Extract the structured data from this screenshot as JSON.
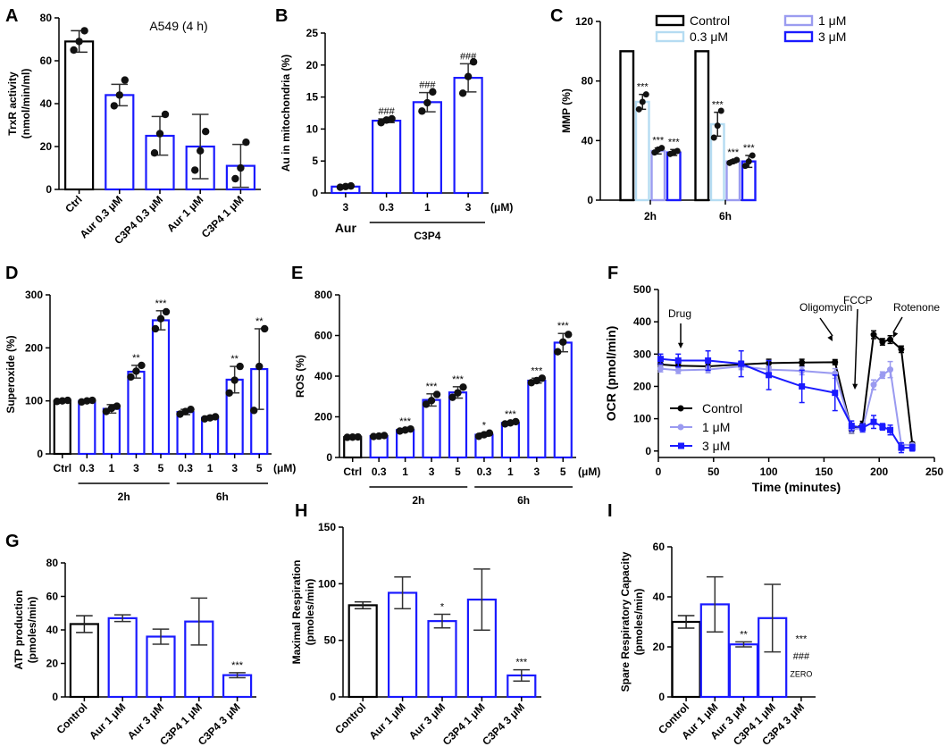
{
  "chart_data": [
    {
      "id": "A",
      "type": "bar",
      "panel_label": "A",
      "title": "A549 (4 h)",
      "ylabel": "TrxR activity\n(nmol/min/ml)",
      "ylim": [
        0,
        80
      ],
      "yticks": [
        0,
        20,
        40,
        60,
        80
      ],
      "categories": [
        "Ctrl",
        "Aur 0.3 μM",
        "C3P4 0.3 μM",
        "Aur 1 μM",
        "C3P4 1 μM"
      ],
      "values": [
        69,
        44,
        25,
        20,
        11
      ],
      "errors": [
        5,
        5,
        9,
        15,
        10
      ],
      "colors": [
        "#000000",
        "#1a1aff",
        "#1a1aff",
        "#1a1aff",
        "#1a1aff"
      ],
      "points": [
        [
          65,
          69,
          74
        ],
        [
          39,
          44,
          51
        ],
        [
          17,
          26,
          35
        ],
        [
          9,
          18,
          27
        ],
        [
          5,
          10,
          22
        ]
      ],
      "annotations": [
        "",
        "",
        "",
        "",
        ""
      ]
    },
    {
      "id": "B",
      "type": "bar",
      "panel_label": "B",
      "ylabel": "Au in mitochondria (%)",
      "ylim": [
        0,
        25
      ],
      "yticks": [
        0,
        5,
        10,
        15,
        20,
        25
      ],
      "categories": [
        "3",
        "0.3",
        "1",
        "3"
      ],
      "unit": "(μM)",
      "groups": [
        {
          "label": "Aur",
          "start": 0,
          "end": 0
        },
        {
          "label": "C3P4",
          "start": 1,
          "end": 3
        }
      ],
      "values": [
        1.0,
        11.3,
        14.2,
        18.0
      ],
      "errors": [
        0.1,
        0.3,
        1.5,
        2.2
      ],
      "colors": [
        "#1a1aff",
        "#1a1aff",
        "#1a1aff",
        "#1a1aff"
      ],
      "points": [
        [
          0.9,
          1.0,
          1.1
        ],
        [
          11.0,
          11.4,
          11.6
        ],
        [
          12.8,
          14.1,
          15.8
        ],
        [
          15.6,
          18.2,
          20.5
        ]
      ],
      "annotations": [
        "",
        "###",
        "###",
        "###"
      ]
    },
    {
      "id": "C",
      "type": "bar",
      "panel_label": "C",
      "ylabel": "MMP (%)",
      "ylim": [
        0,
        120
      ],
      "yticks": [
        0,
        40,
        80,
        120
      ],
      "categories": [
        "2h",
        "6h"
      ],
      "series": [
        {
          "name": "Control",
          "color": "#000000",
          "values": [
            100,
            100
          ],
          "errors": [
            0,
            0
          ],
          "points": [
            [],
            []
          ],
          "annotations": [
            "",
            ""
          ]
        },
        {
          "name": "0.3 μM",
          "color": "#b5dcf2",
          "values": [
            66,
            51
          ],
          "errors": [
            5,
            8
          ],
          "points": [
            [
              61,
              66,
              71
            ],
            [
              42,
              50,
              60
            ]
          ],
          "annotations": [
            "***",
            "***"
          ]
        },
        {
          "name": "1 μM",
          "color": "#9b9cf0",
          "values": [
            33,
            26
          ],
          "errors": [
            2,
            1
          ],
          "points": [
            [
              32,
              34,
              35
            ],
            [
              25,
              26,
              27
            ]
          ],
          "annotations": [
            "***",
            "***"
          ]
        },
        {
          "name": "3 μM",
          "color": "#1a1aff",
          "values": [
            32,
            26
          ],
          "errors": [
            2,
            4
          ],
          "points": [
            [
              31,
              32,
              33
            ],
            [
              23,
              26,
              30
            ]
          ],
          "annotations": [
            "***",
            "***"
          ]
        }
      ]
    },
    {
      "id": "D",
      "type": "bar",
      "panel_label": "D",
      "ylabel": "Superoxide (%)",
      "ylim": [
        0,
        300
      ],
      "yticks": [
        0,
        100,
        200,
        300
      ],
      "categories": [
        "Ctrl",
        "0.3",
        "1",
        "3",
        "5",
        "0.3",
        "1",
        "3",
        "5"
      ],
      "unit": "(μM)",
      "groups": [
        {
          "label": "2h",
          "start": 1,
          "end": 4
        },
        {
          "label": "6h",
          "start": 5,
          "end": 8
        }
      ],
      "values": [
        100,
        100,
        85,
        155,
        252,
        79,
        68,
        140,
        160
      ],
      "errors": [
        0,
        2,
        8,
        12,
        18,
        5,
        3,
        25,
        76
      ],
      "colors": [
        "#000000",
        "#1a1aff",
        "#1a1aff",
        "#1a1aff",
        "#1a1aff",
        "#1a1aff",
        "#1a1aff",
        "#1a1aff",
        "#1a1aff"
      ],
      "points": [
        [
          99,
          100,
          101
        ],
        [
          98,
          100,
          101
        ],
        [
          80,
          86,
          90
        ],
        [
          145,
          156,
          167
        ],
        [
          236,
          255,
          268
        ],
        [
          75,
          80,
          84
        ],
        [
          66,
          68,
          70
        ],
        [
          115,
          139,
          165
        ],
        [
          82,
          165,
          236
        ]
      ],
      "annotations": [
        "",
        "",
        "",
        "**",
        "***",
        "",
        "",
        "**",
        "**"
      ]
    },
    {
      "id": "E",
      "type": "bar",
      "panel_label": "E",
      "ylabel": "ROS (%)",
      "ylim": [
        0,
        800
      ],
      "yticks": [
        0,
        200,
        400,
        600,
        800
      ],
      "categories": [
        "Ctrl",
        "0.3",
        "1",
        "3",
        "5",
        "0.3",
        "1",
        "3",
        "5"
      ],
      "unit": "(μM)",
      "groups": [
        {
          "label": "2h",
          "start": 1,
          "end": 4
        },
        {
          "label": "6h",
          "start": 5,
          "end": 8
        }
      ],
      "values": [
        100,
        105,
        135,
        283,
        320,
        112,
        170,
        378,
        565
      ],
      "errors": [
        0,
        4,
        6,
        30,
        28,
        8,
        6,
        12,
        45
      ],
      "colors": [
        "#000000",
        "#1a1aff",
        "#1a1aff",
        "#1a1aff",
        "#1a1aff",
        "#1a1aff",
        "#1a1aff",
        "#1a1aff",
        "#1a1aff"
      ],
      "points": [
        [
          99,
          100,
          101
        ],
        [
          103,
          105,
          108
        ],
        [
          130,
          135,
          140
        ],
        [
          262,
          280,
          310
        ],
        [
          296,
          318,
          346
        ],
        [
          104,
          112,
          120
        ],
        [
          165,
          170,
          176
        ],
        [
          368,
          378,
          390
        ],
        [
          520,
          568,
          605
        ]
      ],
      "annotations": [
        "",
        "",
        "***",
        "***",
        "***",
        "*",
        "***",
        "***",
        "***"
      ]
    },
    {
      "id": "F",
      "type": "line",
      "panel_label": "F",
      "xlabel": "Time (minutes)",
      "ylabel": "OCR (pmol/min)",
      "xlim": [
        0,
        250
      ],
      "ylim": [
        -20,
        500
      ],
      "xticks": [
        0,
        50,
        100,
        150,
        200,
        250
      ],
      "yticks": [
        0,
        100,
        200,
        300,
        400,
        500
      ],
      "series": [
        {
          "name": "Control",
          "color": "#000000",
          "x": [
            2,
            18,
            45,
            75,
            100,
            130,
            160,
            175,
            185,
            195,
            210,
            220,
            230
          ],
          "y": [
            268,
            264,
            262,
            268,
            272,
            274,
            275,
            65,
            82,
            360,
            345,
            315,
            22
          ],
          "err": [
            10,
            12,
            10,
            10,
            12,
            10,
            8,
            10,
            10,
            12,
            12,
            10,
            5
          ],
          "extra_x": [
            203
          ],
          "extra_y": [
            338
          ]
        },
        {
          "name": "1 μM",
          "color": "#9a9af0",
          "x": [
            2,
            18,
            45,
            75,
            100,
            130,
            160,
            175,
            185,
            195,
            210,
            220,
            230
          ],
          "y": [
            255,
            250,
            252,
            262,
            252,
            248,
            240,
            68,
            70,
            205,
            252,
            20,
            18
          ],
          "err": [
            10,
            10,
            10,
            10,
            10,
            12,
            15,
            12,
            12,
            15,
            25,
            5,
            5
          ],
          "extra_x": [
            203
          ],
          "extra_y": [
            235
          ]
        },
        {
          "name": "3 μM",
          "color": "#1a1aff",
          "x": [
            2,
            18,
            45,
            75,
            100,
            130,
            160,
            175,
            185,
            195,
            210,
            220,
            230
          ],
          "y": [
            285,
            280,
            280,
            270,
            235,
            200,
            180,
            78,
            72,
            90,
            65,
            10,
            10
          ],
          "err": [
            15,
            20,
            30,
            40,
            45,
            50,
            55,
            15,
            12,
            20,
            15,
            15,
            10
          ],
          "extra_x": [
            203
          ],
          "extra_y": [
            75
          ]
        }
      ],
      "annotations": [
        {
          "text": "Drug",
          "x": 18,
          "y": 340
        },
        {
          "text": "Oligomycin",
          "x": 157,
          "y": 400
        },
        {
          "text": "FCCP",
          "x": 182,
          "y": 420
        },
        {
          "text": "Rotenone",
          "x": 205,
          "y": 400
        }
      ]
    },
    {
      "id": "G",
      "type": "bar",
      "panel_label": "G",
      "ylabel": "ATP production\n(pmoles/min)",
      "ylim": [
        0,
        80
      ],
      "yticks": [
        0,
        20,
        40,
        60,
        80
      ],
      "categories": [
        "Control",
        "Aur 1 μM",
        "Aur 3 μM",
        "C3P4 1 μM",
        "C3P4 3 μM"
      ],
      "values": [
        43.5,
        47,
        36,
        45,
        13
      ],
      "errors": [
        5,
        2,
        4.5,
        14,
        1.5
      ],
      "colors": [
        "#000000",
        "#1a1aff",
        "#1a1aff",
        "#1a1aff",
        "#1a1aff"
      ],
      "annotations": [
        "",
        "",
        "",
        "",
        "***"
      ]
    },
    {
      "id": "H",
      "type": "bar",
      "panel_label": "H",
      "ylabel": "Maximal Respiration\n(pmoles/min)",
      "ylim": [
        0,
        150
      ],
      "yticks": [
        0,
        50,
        100,
        150
      ],
      "categories": [
        "Control",
        "Aur 1 μM",
        "Aur 3 μM",
        "C3P4 1 μM",
        "C3P4 3 μM"
      ],
      "values": [
        81,
        92,
        67,
        86,
        19
      ],
      "errors": [
        3,
        14,
        6,
        27,
        5
      ],
      "colors": [
        "#000000",
        "#1a1aff",
        "#1a1aff",
        "#1a1aff",
        "#1a1aff"
      ],
      "annotations": [
        "",
        "",
        "*",
        "",
        "***"
      ]
    },
    {
      "id": "I",
      "type": "bar",
      "panel_label": "I",
      "ylabel": "Spare Respiratory Capacity\n(pmoles/min)",
      "ylim": [
        0,
        60
      ],
      "yticks": [
        0,
        20,
        40,
        60
      ],
      "categories": [
        "Control",
        "Aur 1 μM",
        "Aur 3 μM",
        "C3P4 1 μM",
        "C3P4 3 μM"
      ],
      "values": [
        30,
        37,
        21,
        31.5,
        0
      ],
      "errors": [
        2.5,
        11,
        1,
        13.5,
        0
      ],
      "colors": [
        "#000000",
        "#1a1aff",
        "#1a1aff",
        "#1a1aff",
        "#1a1aff"
      ],
      "annotations": [
        "",
        "",
        "**",
        "",
        ""
      ],
      "extra_labels": [
        "***",
        "###",
        "ZERO"
      ]
    }
  ]
}
